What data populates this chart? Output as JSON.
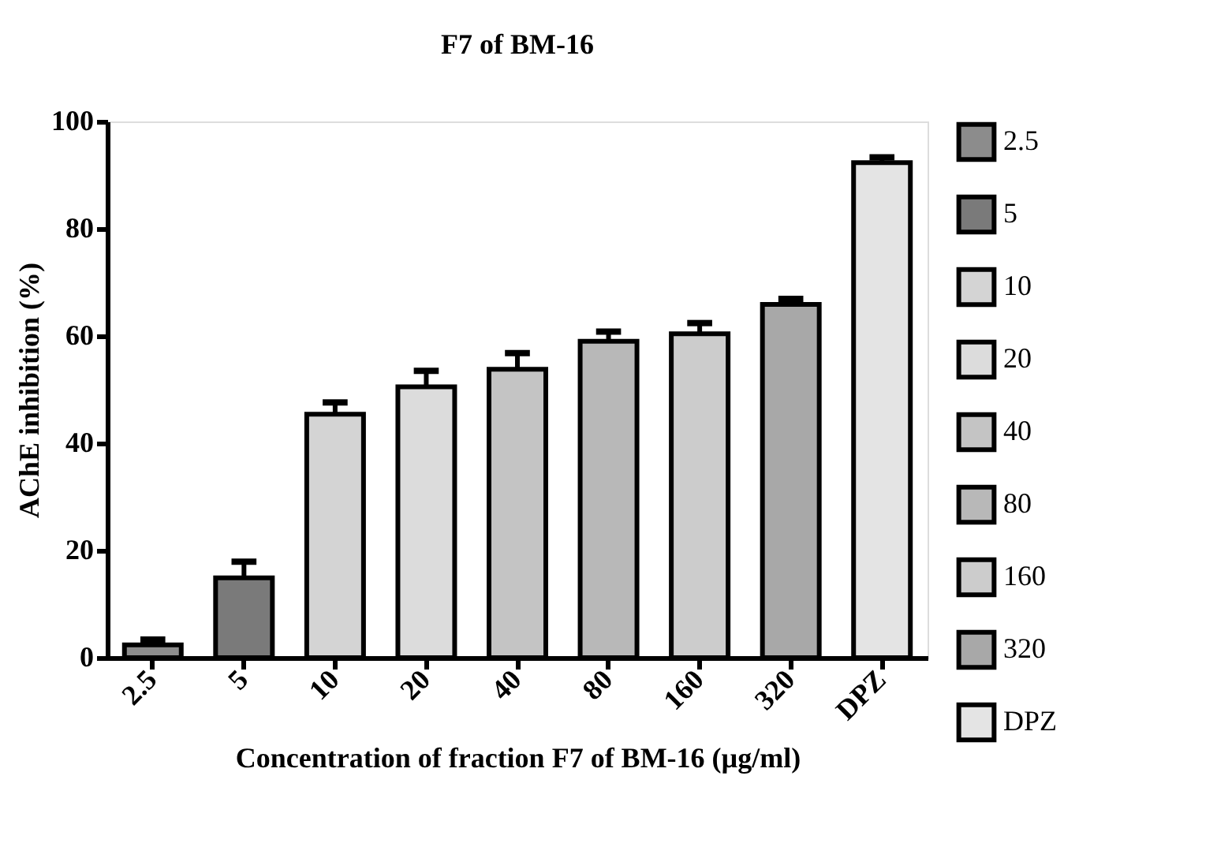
{
  "chart_data": {
    "type": "bar",
    "title": "F7  of BM-16",
    "xlabel": "Concentration of fraction F7 of BM-16 (µg/ml)",
    "ylabel": "AChE inhibition (%)",
    "categories": [
      "2.5",
      "5",
      "10",
      "20",
      "40",
      "80",
      "160",
      "320",
      "DPZ"
    ],
    "series": [
      {
        "name": "2.5",
        "color": "#8c8c8c",
        "values": [
          2.4,
          null,
          null,
          null,
          null,
          null,
          null,
          null,
          null
        ],
        "errors": [
          1.0,
          null,
          null,
          null,
          null,
          null,
          null,
          null,
          null
        ]
      },
      {
        "name": "5",
        "color": "#7a7a7a",
        "values": [
          null,
          14.9,
          null,
          null,
          null,
          null,
          null,
          null,
          null
        ],
        "errors": [
          null,
          3.0,
          null,
          null,
          null,
          null,
          null,
          null,
          null
        ]
      },
      {
        "name": "10",
        "color": "#d4d4d4",
        "values": [
          null,
          null,
          45.4,
          null,
          null,
          null,
          null,
          null,
          null
        ],
        "errors": [
          null,
          null,
          2.2,
          null,
          null,
          null,
          null,
          null,
          null
        ]
      },
      {
        "name": "20",
        "color": "#dcdcdc",
        "values": [
          null,
          null,
          null,
          50.5,
          null,
          null,
          null,
          null,
          null
        ],
        "errors": [
          null,
          null,
          null,
          3.0,
          null,
          null,
          null,
          null,
          null
        ]
      },
      {
        "name": "40",
        "color": "#c4c4c4",
        "values": [
          null,
          null,
          null,
          null,
          53.8,
          null,
          null,
          null,
          null
        ],
        "errors": [
          null,
          null,
          null,
          null,
          3.0,
          null,
          null,
          null,
          null
        ]
      },
      {
        "name": "80",
        "color": "#b8b8b8",
        "values": [
          null,
          null,
          null,
          null,
          null,
          59.0,
          null,
          null,
          null
        ],
        "errors": [
          null,
          null,
          null,
          null,
          null,
          1.8,
          null,
          null,
          null
        ]
      },
      {
        "name": "160",
        "color": "#cccccc",
        "values": [
          null,
          null,
          null,
          null,
          null,
          null,
          60.4,
          null,
          null
        ],
        "errors": [
          null,
          null,
          null,
          null,
          null,
          null,
          2.0,
          null,
          null
        ]
      },
      {
        "name": "320",
        "color": "#a8a8a8",
        "values": [
          null,
          null,
          null,
          null,
          null,
          null,
          null,
          65.9,
          null
        ],
        "errors": [
          null,
          null,
          null,
          null,
          null,
          null,
          null,
          1.0,
          null
        ]
      },
      {
        "name": "DPZ",
        "color": "#e4e4e4",
        "values": [
          null,
          null,
          null,
          null,
          null,
          null,
          null,
          null,
          92.3
        ],
        "errors": [
          null,
          null,
          null,
          null,
          null,
          null,
          null,
          null,
          1.0
        ]
      }
    ],
    "ylim": [
      0,
      100
    ],
    "yticks": [
      0,
      20,
      40,
      60,
      80,
      100
    ],
    "grid": false,
    "legend": "right"
  }
}
